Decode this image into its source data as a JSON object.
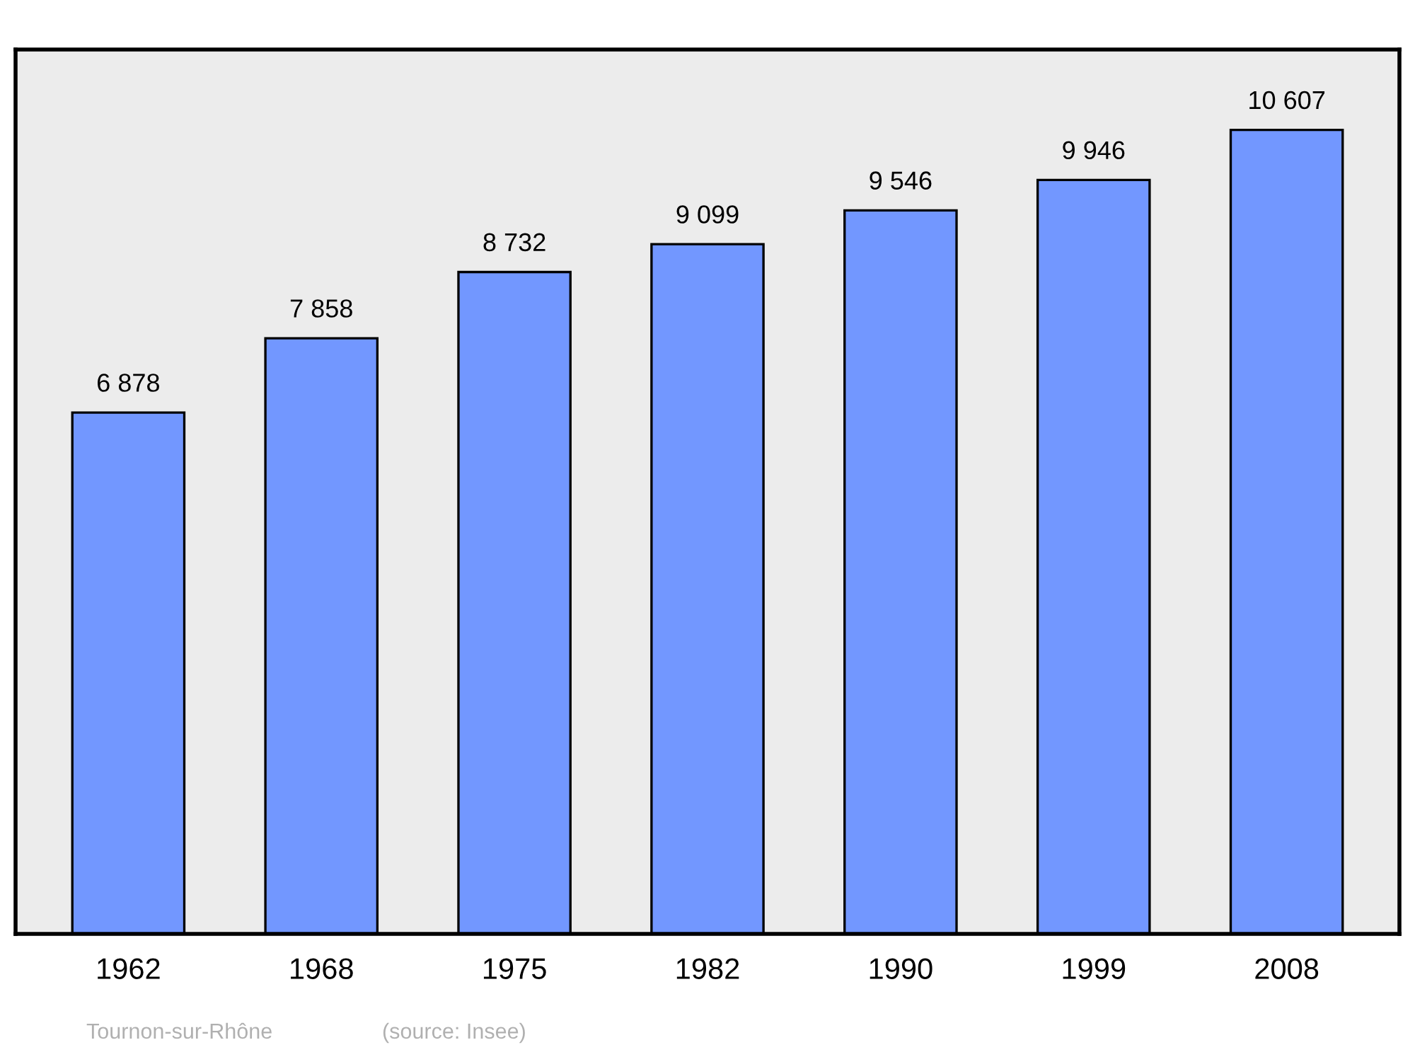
{
  "chart_data": {
    "type": "bar",
    "categories": [
      "1962",
      "1968",
      "1975",
      "1982",
      "1990",
      "1999",
      "2008"
    ],
    "values": [
      6878,
      7858,
      8732,
      9099,
      9546,
      9946,
      10607
    ],
    "value_labels": [
      "6 878",
      "7 858",
      "8 732",
      "9 099",
      "9 546",
      "9 946",
      "10 607"
    ],
    "color": "#7297ff",
    "grid": false,
    "legend": false,
    "tick_labels": "x",
    "annotations": [
      "Tournon-sur-Rhône",
      "(source: Insee)"
    ]
  }
}
